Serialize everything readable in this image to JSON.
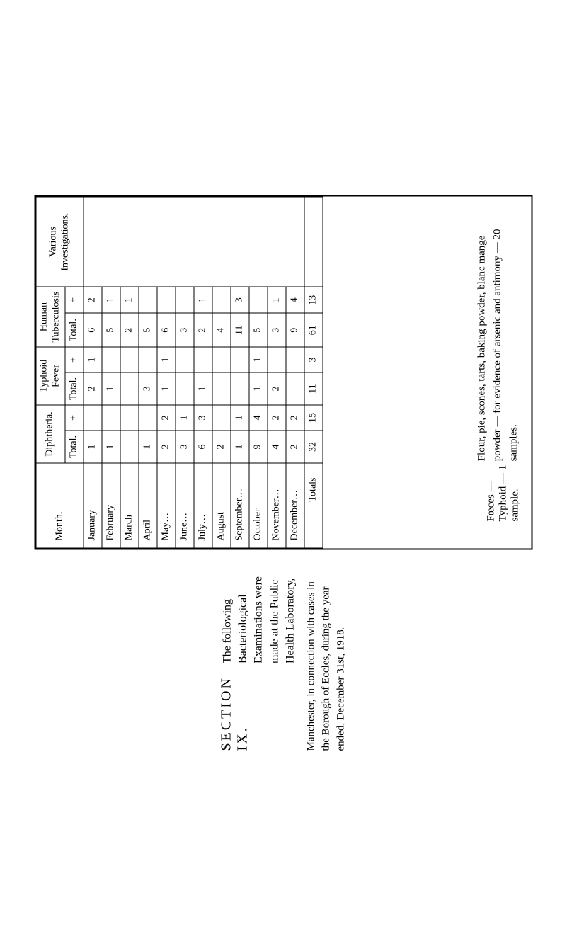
{
  "header": {
    "section_no": "SECTION IX.",
    "description": "The following Bacteriological Examinations were made at the Public Health Laboratory,",
    "sub": "Manchester, in connection with cases in the Borough of Eccles, during the year ended, December 31st, 1918."
  },
  "table": {
    "col_month": "Month.",
    "groups": {
      "diphtheria": "Diphtheria.",
      "typhoid": "Typhoid Fever",
      "human_tb": "Human\nTuberculosis",
      "various": "Various Investigations."
    },
    "subcols": {
      "total": "Total.",
      "plus": "+"
    },
    "months": [
      "January",
      "February",
      "March",
      "April",
      "May…",
      "June…",
      "July…",
      "August",
      "September…",
      "October",
      "November…",
      "December…"
    ],
    "diph_total": [
      "1",
      "1",
      "",
      "1",
      "2",
      "3",
      "6",
      "2",
      "1",
      "9",
      "4",
      "2"
    ],
    "diph_plus": [
      "",
      "",
      "",
      "",
      "2",
      "1",
      "3",
      "",
      "1",
      "4",
      "2",
      "2"
    ],
    "typh_total": [
      "2",
      "1",
      "",
      "3",
      "1",
      "",
      "1",
      "",
      "",
      "1",
      "2",
      ""
    ],
    "typh_plus": [
      "1",
      "",
      "",
      "",
      "1",
      "",
      "",
      "",
      "",
      "1",
      "",
      ""
    ],
    "tb_total": [
      "6",
      "5",
      "2",
      "5",
      "6",
      "3",
      "2",
      "4",
      "11",
      "5",
      "3",
      "9"
    ],
    "tb_plus": [
      "2",
      "1",
      "1",
      "",
      "",
      "",
      "1",
      "",
      "3",
      "",
      "1",
      "4"
    ],
    "totals_label": "Totals",
    "totals": {
      "diph_total": "32",
      "diph_plus": "15",
      "typh_total": "11",
      "typh_plus": "3",
      "tb_total": "61",
      "tb_plus": "13"
    }
  },
  "notes": {
    "faeces": "Fœces — Typhoid — 1 sample.",
    "flour": "Flour, pie, scones, tarts, baking powder, blanc mange powder — for evidence of arsenic and antimony — 20 samples."
  },
  "style": {
    "page_bg": "#ffffff",
    "border_color": "#000000",
    "font_family": "Times New Roman",
    "body_fontsize": 14,
    "header_fontsize": 20
  }
}
